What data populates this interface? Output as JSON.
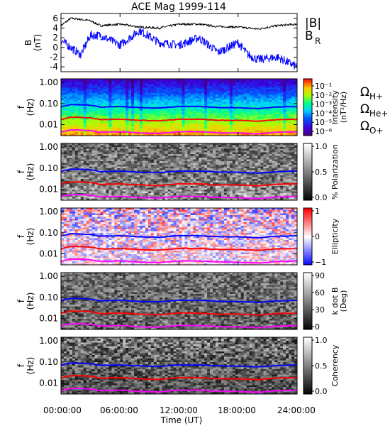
{
  "title": "ACE Mag 1999-114",
  "xaxis": {
    "label": "Time (UT)",
    "ticks": [
      "00:00:00",
      "06:00:00",
      "12:00:00",
      "18:00:00",
      "24:00:00"
    ],
    "range_hours": [
      0,
      24
    ]
  },
  "chart_data": [
    {
      "type": "line",
      "panel": "field",
      "ylabel": [
        "B",
        "(nT)"
      ],
      "ylim": [
        -5,
        7
      ],
      "yticks": [
        -4,
        -2,
        0,
        2,
        4,
        6
      ],
      "series": [
        {
          "name": "|B|",
          "color": "#000000",
          "x": [
            0,
            1,
            2,
            3,
            4,
            6,
            8,
            10,
            12,
            14,
            16,
            18,
            20,
            22,
            24
          ],
          "values": [
            4.5,
            6.0,
            5.8,
            5.5,
            4.5,
            4.8,
            4.2,
            4.0,
            4.8,
            4.8,
            4.3,
            4.2,
            3.8,
            4.5,
            4.8
          ]
        },
        {
          "name": "B",
          "subscript": "R",
          "color": "#0000ff",
          "x": [
            0,
            1,
            2,
            3,
            4,
            6,
            8,
            10,
            12,
            14,
            16,
            18,
            19,
            20,
            22,
            24
          ],
          "values": [
            1.5,
            0,
            -1.5,
            2.5,
            2.5,
            0.5,
            3.5,
            1.0,
            0.5,
            2.0,
            -1.0,
            1.0,
            -1.5,
            -2.5,
            -2.0,
            -4.0
          ]
        }
      ]
    },
    {
      "type": "heatmap",
      "panel": "intensity",
      "ylabel": [
        "f",
        "(Hz)"
      ],
      "yscale": "log",
      "ylim": [
        0.003,
        1.5
      ],
      "yticks": [
        "1.00",
        "0.10",
        "0.01"
      ],
      "colorbar": {
        "label": [
          "Intensity",
          "(nT²/Hz)"
        ],
        "scale": "log",
        "ticks": [
          "10⁻¹",
          "10⁻²",
          "10⁻³",
          "10⁻⁴",
          "10⁻⁵",
          "10⁻⁶"
        ]
      },
      "legend": [
        {
          "symbol": "Ω",
          "sub": "H+",
          "color": "#0000ff"
        },
        {
          "symbol": "Ω",
          "sub": "He+",
          "color": "#ff0000"
        },
        {
          "symbol": "Ω",
          "sub": "O+",
          "color": "#ff00ff"
        }
      ]
    },
    {
      "type": "heatmap",
      "panel": "polarization",
      "ylabel": [
        "f",
        "(Hz)"
      ],
      "yscale": "log",
      "ylim": [
        0.003,
        1.5
      ],
      "yticks": [
        "1.00",
        "0.10",
        "0.01"
      ],
      "colorbar": {
        "label": [
          "% Polarization"
        ],
        "scale": "linear",
        "ticks": [
          "1.0",
          "0.5",
          "0.0"
        ]
      }
    },
    {
      "type": "heatmap",
      "panel": "ellipticity",
      "ylabel": [
        "f",
        "(Hz)"
      ],
      "yscale": "log",
      "ylim": [
        0.003,
        1.5
      ],
      "yticks": [
        "1.00",
        "0.10",
        "0.01"
      ],
      "colorbar": {
        "label": [
          "Ellipticity"
        ],
        "scale": "linear",
        "ticks": [
          "1",
          "0",
          "−1"
        ]
      }
    },
    {
      "type": "heatmap",
      "panel": "kdotb",
      "ylabel": [
        "f",
        "(Hz)"
      ],
      "yscale": "log",
      "ylim": [
        0.003,
        1.5
      ],
      "yticks": [
        "1.00",
        "0.10",
        "0.01"
      ],
      "colorbar": {
        "label": [
          "k dot B",
          "(Deg)"
        ],
        "scale": "linear",
        "ticks": [
          "90",
          "60",
          "30",
          "0"
        ]
      }
    },
    {
      "type": "heatmap",
      "panel": "coherency",
      "ylabel": [
        "f",
        "(Hz)"
      ],
      "yscale": "log",
      "ylim": [
        0.003,
        1.5
      ],
      "yticks": [
        "1.00",
        "0.10",
        "0.01"
      ],
      "colorbar": {
        "label": [
          "Coherency"
        ],
        "scale": "linear",
        "ticks": [
          "1.0",
          "0.5",
          "0.0"
        ]
      }
    }
  ],
  "gyrofrequencies_hz": {
    "x": [
      0,
      1,
      2,
      3,
      4,
      6,
      8,
      10,
      12,
      14,
      16,
      18,
      20,
      22,
      24
    ],
    "H+": [
      0.07,
      0.09,
      0.088,
      0.083,
      0.068,
      0.073,
      0.064,
      0.061,
      0.073,
      0.073,
      0.065,
      0.064,
      0.058,
      0.068,
      0.073
    ],
    "He+": [
      0.0175,
      0.0225,
      0.022,
      0.021,
      0.017,
      0.018,
      0.016,
      0.015,
      0.018,
      0.018,
      0.016,
      0.016,
      0.0145,
      0.017,
      0.018
    ],
    "O+": [
      0.0044,
      0.0056,
      0.0055,
      0.0052,
      0.0043,
      0.0046,
      0.004,
      0.0038,
      0.0046,
      0.0046,
      0.0041,
      0.004,
      0.0036,
      0.0043,
      0.0046
    ]
  }
}
